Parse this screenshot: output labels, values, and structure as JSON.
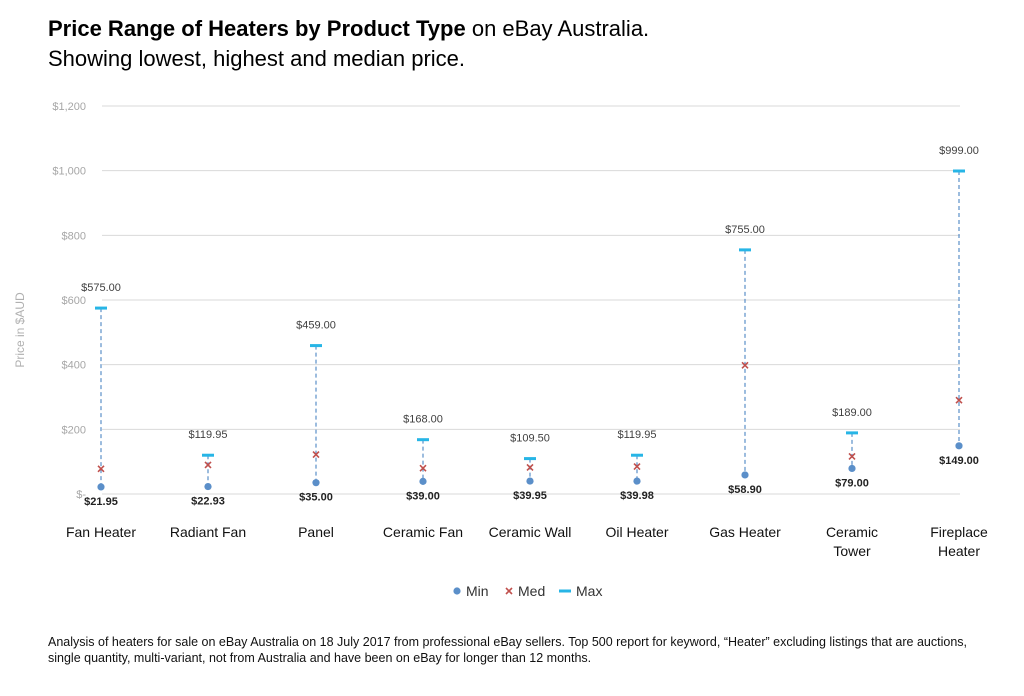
{
  "title": {
    "bold": "Price Range of Heaters by Product Type",
    "rest": " on eBay Australia.",
    "line2": "Showing lowest, highest and median price."
  },
  "footnote": "Analysis of heaters for sale on eBay Australia on 18 July 2017 from professional eBay sellers.  Top 500 report for keyword, “Heater” excluding listings that are auctions, single quantity, multi-variant, not from Australia and have been on eBay for longer than 12 months.",
  "colors": {
    "min": "#5b8fc9",
    "med": "#c0504d",
    "max": "#27b5e6",
    "grid": "#d9d9d9",
    "dash": "#5b8fc9"
  },
  "chart_data": {
    "type": "scatter",
    "ylabel": "Price in $AUD",
    "ylim": [
      0,
      1200
    ],
    "yticks": [
      0,
      200,
      400,
      600,
      800,
      1000,
      1200
    ],
    "ytick_labels": [
      "$-",
      "$200",
      "$400",
      "$600",
      "$800",
      "$1,000",
      "$1,200"
    ],
    "grid": true,
    "legend_position": "bottom",
    "categories": [
      [
        "Fan Heater"
      ],
      [
        "Radiant Fan"
      ],
      [
        "Panel"
      ],
      [
        "Ceramic Fan"
      ],
      [
        "Ceramic Wall"
      ],
      [
        "Oil Heater"
      ],
      [
        "Gas Heater"
      ],
      [
        "Ceramic",
        "Tower"
      ],
      [
        "Fireplace",
        "Heater"
      ]
    ],
    "series": [
      {
        "name": "Min",
        "values": [
          21.95,
          22.93,
          35.0,
          39.0,
          39.95,
          39.98,
          58.9,
          79.0,
          149.0
        ],
        "labels": [
          "$21.95",
          "$22.93",
          "$35.00",
          "$39.00",
          "$39.95",
          "$39.98",
          "$58.90",
          "$79.00",
          "$149.00"
        ]
      },
      {
        "name": "Med",
        "values": [
          78,
          90,
          122,
          80,
          82,
          85,
          398,
          116,
          290
        ]
      },
      {
        "name": "Max",
        "values": [
          575.0,
          119.95,
          459.0,
          168.0,
          109.5,
          119.95,
          755.0,
          189.0,
          999.0
        ],
        "labels": [
          "$575.00",
          "$119.95",
          "$459.00",
          "$168.00",
          "$109.50",
          "$119.95",
          "$755.00",
          "$189.00",
          "$999.00"
        ]
      }
    ]
  }
}
